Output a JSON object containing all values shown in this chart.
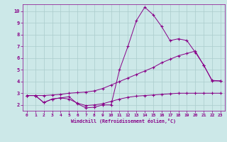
{
  "xlabel": "Windchill (Refroidissement éolien,°C)",
  "background_color": "#cce8e8",
  "grid_color": "#aacccc",
  "line_color": "#880088",
  "xlim": [
    -0.5,
    23.5
  ],
  "ylim": [
    1.5,
    10.6
  ],
  "yticks": [
    2,
    3,
    4,
    5,
    6,
    7,
    8,
    9,
    10
  ],
  "xticks": [
    0,
    1,
    2,
    3,
    4,
    5,
    6,
    7,
    8,
    9,
    10,
    11,
    12,
    13,
    14,
    15,
    16,
    17,
    18,
    19,
    20,
    21,
    22,
    23
  ],
  "lines": [
    {
      "x": [
        0,
        1,
        2,
        3,
        4,
        5,
        6,
        7,
        8,
        9,
        10,
        11,
        12,
        13,
        14,
        15,
        16,
        17,
        18,
        19,
        20,
        21,
        22,
        23
      ],
      "y": [
        2.8,
        2.8,
        2.2,
        2.5,
        2.6,
        2.7,
        2.1,
        1.75,
        1.8,
        2.0,
        2.0,
        5.0,
        7.0,
        9.2,
        10.35,
        9.7,
        8.7,
        7.5,
        7.65,
        7.5,
        6.5,
        5.4,
        4.1,
        4.05
      ]
    },
    {
      "x": [
        0,
        1,
        2,
        3,
        4,
        5,
        6,
        7,
        8,
        9,
        10,
        11,
        12,
        13,
        14,
        15,
        16,
        17,
        18,
        19,
        20,
        21,
        22,
        23
      ],
      "y": [
        2.8,
        2.8,
        2.8,
        2.85,
        2.9,
        3.0,
        3.05,
        3.1,
        3.2,
        3.4,
        3.7,
        4.0,
        4.3,
        4.6,
        4.9,
        5.2,
        5.6,
        5.9,
        6.2,
        6.4,
        6.6,
        5.4,
        4.05,
        4.05
      ]
    },
    {
      "x": [
        0,
        1,
        2,
        3,
        4,
        5,
        6,
        7,
        8,
        9,
        10,
        11,
        12,
        13,
        14,
        15,
        16,
        17,
        18,
        19,
        20,
        21,
        22,
        23
      ],
      "y": [
        2.8,
        2.8,
        2.2,
        2.5,
        2.6,
        2.5,
        2.15,
        1.95,
        2.0,
        2.1,
        2.3,
        2.5,
        2.65,
        2.75,
        2.8,
        2.85,
        2.9,
        2.95,
        3.0,
        3.0,
        3.0,
        3.0,
        3.0,
        3.0
      ]
    }
  ]
}
